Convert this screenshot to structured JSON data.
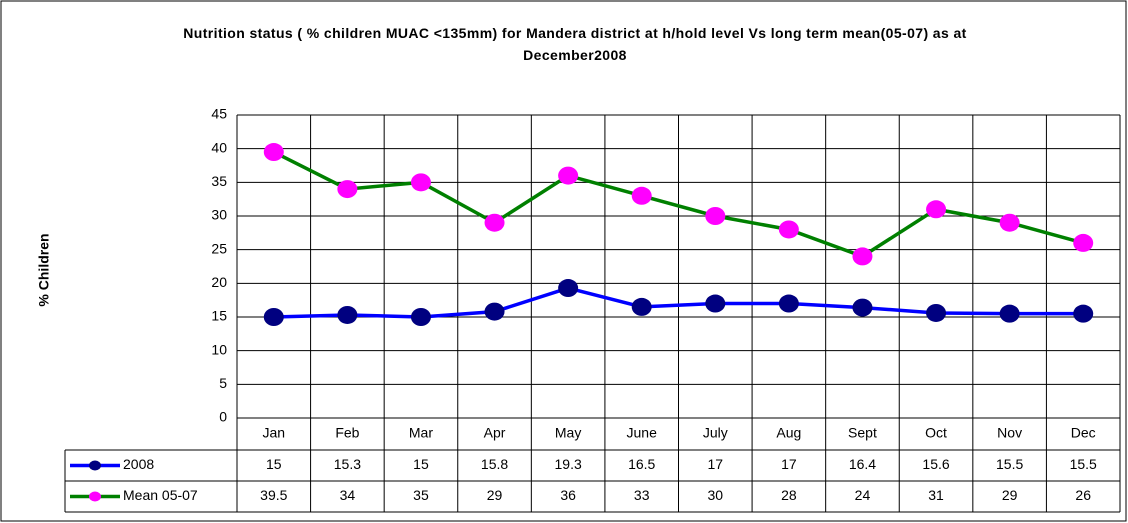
{
  "chart_data": {
    "type": "line",
    "title": "Nutrition status ( % children MUAC <135mm) for Mandera district at h/hold level Vs long term mean(05-07) as at December2008",
    "y_label": "% Children",
    "categories": [
      "Jan",
      "Feb",
      "Mar",
      "Apr",
      "May",
      "June",
      "July",
      "Aug",
      "Sept",
      "Oct",
      "Nov",
      "Dec"
    ],
    "series": [
      {
        "name": "2008",
        "color": "#0000ff",
        "marker_color": "#000080",
        "values": [
          15,
          15.3,
          15,
          15.8,
          19.3,
          16.5,
          17,
          17,
          16.4,
          15.6,
          15.5,
          15.5
        ]
      },
      {
        "name": "Mean 05-07",
        "color": "#008000",
        "marker_color": "#ff00ff",
        "values": [
          39.5,
          34,
          35,
          29,
          36,
          33,
          30,
          28,
          24,
          31,
          29,
          26
        ]
      }
    ],
    "ylim": [
      0,
      45
    ],
    "yticks": [
      0,
      5,
      10,
      15,
      20,
      25,
      30,
      35,
      40,
      45
    ],
    "grid": true,
    "data_table": true
  }
}
